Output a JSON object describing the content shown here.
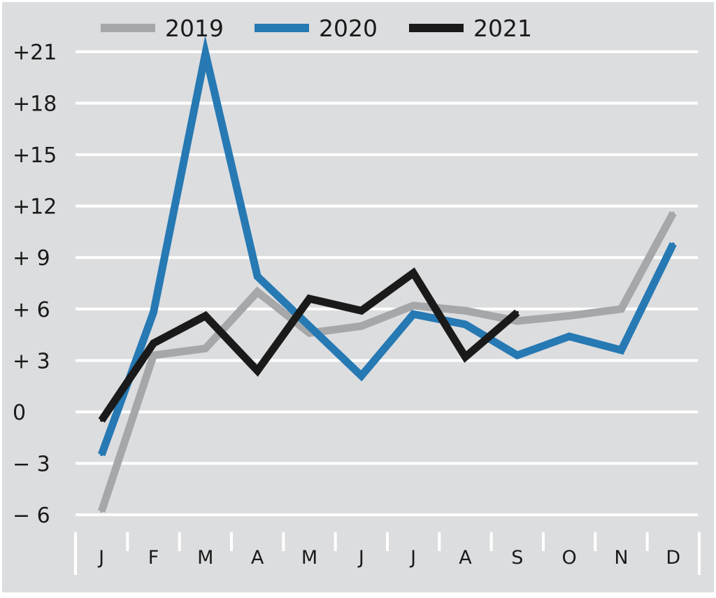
{
  "chart_data": {
    "type": "line",
    "title": "",
    "xlabel": "",
    "ylabel": "",
    "categories": [
      "J",
      "F",
      "M",
      "A",
      "M",
      "J",
      "J",
      "A",
      "S",
      "O",
      "N",
      "D"
    ],
    "y_ticks": [
      21,
      18,
      15,
      12,
      9,
      6,
      3,
      0,
      -3,
      -6
    ],
    "y_tick_labels": [
      "+21",
      "+18",
      "+15",
      "+12",
      "+ 9",
      "+ 6",
      "+ 3",
      "0",
      "− 3",
      "− 6"
    ],
    "ylim": [
      -6,
      21
    ],
    "grid": true,
    "legend_position": "top",
    "background_color": "#dcdddf",
    "grid_color": "#ffffff",
    "series": [
      {
        "name": "2019",
        "color": "#a6a7a9",
        "values": [
          -5.8,
          3.3,
          3.7,
          7.0,
          4.6,
          5.0,
          6.2,
          5.9,
          5.3,
          5.6,
          6.0,
          11.6
        ]
      },
      {
        "name": "2020",
        "color": "#2679b3",
        "values": [
          -2.5,
          5.8,
          20.9,
          7.9,
          5.0,
          2.1,
          5.7,
          5.1,
          3.3,
          4.4,
          3.6,
          9.8
        ]
      },
      {
        "name": "2021",
        "color": "#1a1a1a",
        "values": [
          -0.5,
          4.0,
          5.6,
          2.4,
          6.6,
          5.9,
          8.1,
          3.2,
          5.8,
          null,
          null,
          null
        ]
      }
    ]
  }
}
